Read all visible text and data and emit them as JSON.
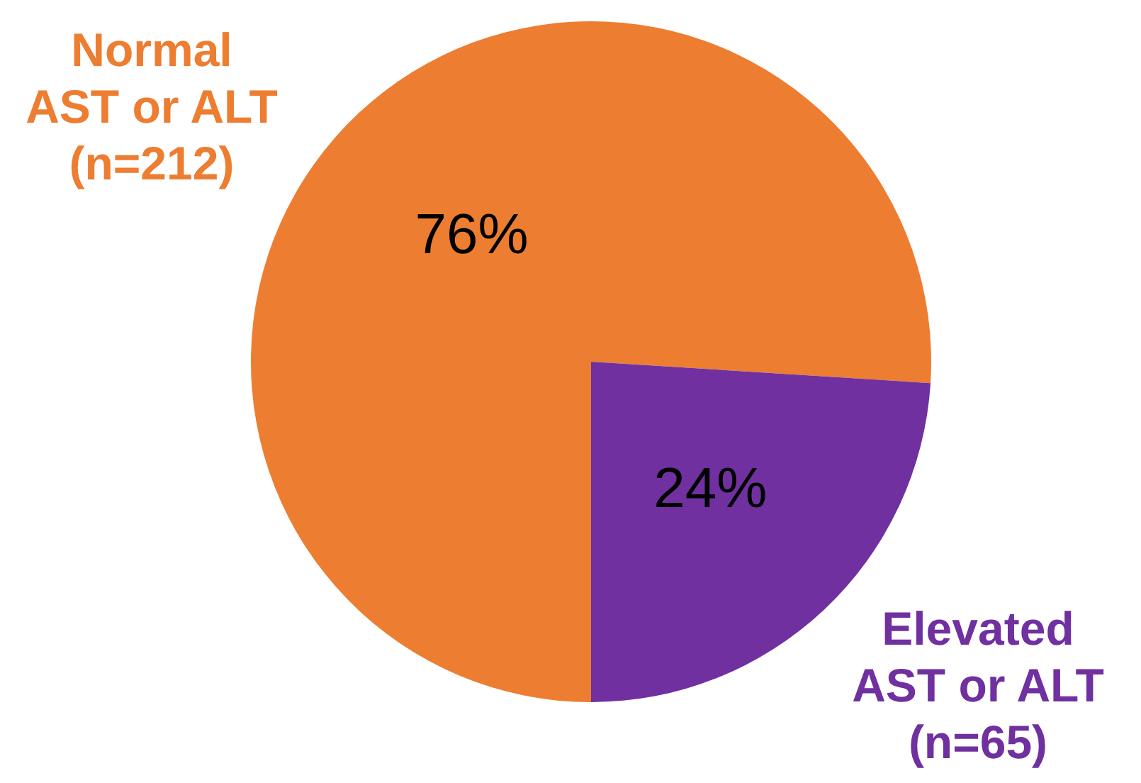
{
  "chart_data": {
    "type": "pie",
    "categories": [
      "Normal\nAST or ALT\n(n=212)",
      "Elevated\nAST or ALT\n(n=65)"
    ],
    "values": [
      76,
      24
    ],
    "colors": [
      "#ed7d31",
      "#7030a0"
    ],
    "value_labels": [
      "76%",
      "24%"
    ],
    "legend": false
  }
}
